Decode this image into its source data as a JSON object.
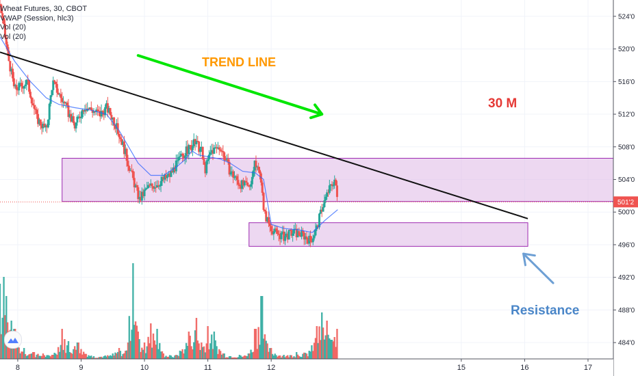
{
  "legend": {
    "symbol": "Wheat Futures, 30, CBOT",
    "vwap": "VWAP (Session, hlc3)",
    "vol1": "Vol (20)",
    "vol2": "Vol (20)"
  },
  "annotations": {
    "trend_line": "TREND LINE",
    "timeframe": "30 M",
    "resistance": "Resistance"
  },
  "colors": {
    "up": "#26a69a",
    "down": "#ef5350",
    "vwap": "#2962ff",
    "zone_fill": "#e1bee7",
    "zone_border": "#9c27b0",
    "trend_arrow": "#00e600",
    "trend_text": "#ff9800",
    "timeframe_text": "#e53935",
    "resistance_text": "#4a86c8",
    "price_line": "#ef5350"
  },
  "chart_data": {
    "type": "candlestick",
    "price_axis": {
      "ylim": [
        4820,
        5260
      ],
      "tick_labels": [
        "524'0",
        "520'0",
        "516'0",
        "512'0",
        "508'0",
        "504'0",
        "500'0",
        "496'0",
        "492'0",
        "488'0",
        "484'0"
      ],
      "tick_values": [
        5240,
        5200,
        5160,
        5120,
        5080,
        5040,
        5000,
        4960,
        4920,
        4880,
        4840
      ],
      "current_price_label": "501'2",
      "current_price": 5012.5
    },
    "time_axis": {
      "tick_labels": [
        "8",
        "9",
        "10",
        "11",
        "12",
        "15",
        "16",
        "17"
      ],
      "tick_values": [
        8,
        9,
        10,
        11,
        12,
        15,
        16,
        17
      ],
      "xlim": [
        7.72,
        17.4
      ]
    },
    "path": [
      [
        7.72,
        5255
      ],
      [
        7.85,
        5190
      ],
      [
        7.95,
        5150
      ],
      [
        8.15,
        5160
      ],
      [
        8.3,
        5115
      ],
      [
        8.45,
        5100
      ],
      [
        8.55,
        5160
      ],
      [
        8.75,
        5130
      ],
      [
        8.9,
        5105
      ],
      [
        9.05,
        5130
      ],
      [
        9.3,
        5120
      ],
      [
        9.4,
        5128
      ],
      [
        9.5,
        5115
      ],
      [
        9.65,
        5085
      ],
      [
        9.8,
        5045
      ],
      [
        9.92,
        5015
      ],
      [
        10.05,
        5030
      ],
      [
        10.2,
        5035
      ],
      [
        10.4,
        5045
      ],
      [
        10.6,
        5070
      ],
      [
        10.8,
        5085
      ],
      [
        10.9,
        5075
      ],
      [
        10.95,
        5050
      ],
      [
        11.05,
        5075
      ],
      [
        11.2,
        5080
      ],
      [
        11.35,
        5050
      ],
      [
        11.5,
        5035
      ],
      [
        11.65,
        5030
      ],
      [
        11.75,
        5060
      ],
      [
        11.85,
        5040
      ],
      [
        11.88,
        5000
      ],
      [
        11.97,
        4985
      ],
      [
        12.05,
        4975
      ],
      [
        12.2,
        4970
      ],
      [
        12.35,
        4975
      ],
      [
        12.5,
        4972
      ],
      [
        12.62,
        4965
      ],
      [
        12.72,
        4980
      ],
      [
        12.8,
        5005
      ],
      [
        12.9,
        5025
      ],
      [
        13.0,
        5040
      ],
      [
        13.05,
        5012
      ]
    ],
    "vwap": [
      [
        7.72,
        5215
      ],
      [
        7.95,
        5185
      ],
      [
        8.2,
        5160
      ],
      [
        8.45,
        5140
      ],
      [
        8.65,
        5132
      ],
      [
        8.9,
        5128
      ],
      [
        9.15,
        5125
      ],
      [
        9.4,
        5120
      ],
      [
        9.6,
        5100
      ],
      [
        9.75,
        5080
      ],
      [
        9.9,
        5060
      ],
      [
        10.1,
        5045
      ],
      [
        10.3,
        5045
      ],
      [
        10.5,
        5055
      ],
      [
        10.65,
        5065
      ],
      [
        10.75,
        5075
      ],
      [
        10.85,
        5070
      ],
      [
        11.0,
        5068
      ],
      [
        11.2,
        5065
      ],
      [
        11.35,
        5060
      ],
      [
        11.55,
        5050
      ],
      [
        11.75,
        5048
      ],
      [
        11.88,
        5040
      ],
      [
        12.0,
        4985
      ],
      [
        12.2,
        4980
      ],
      [
        12.45,
        4978
      ],
      [
        12.65,
        4975
      ],
      [
        12.85,
        4990
      ],
      [
        13.05,
        5003
      ]
    ],
    "volume": {
      "xlim": [
        7.72,
        17.4
      ],
      "ylim": [
        0,
        70
      ],
      "spikes": [
        [
          7.72,
          55
        ],
        [
          7.78,
          60
        ],
        [
          7.82,
          46
        ],
        [
          7.9,
          28
        ],
        [
          7.95,
          22
        ],
        [
          8.0,
          14
        ],
        [
          8.1,
          8
        ],
        [
          8.25,
          5
        ],
        [
          8.4,
          4
        ],
        [
          8.55,
          3
        ],
        [
          8.7,
          22
        ],
        [
          8.8,
          13
        ],
        [
          8.95,
          12
        ],
        [
          9.2,
          2
        ],
        [
          9.5,
          4
        ],
        [
          9.6,
          8
        ],
        [
          9.7,
          6
        ],
        [
          9.82,
          70
        ],
        [
          9.9,
          20
        ],
        [
          10.0,
          12
        ],
        [
          10.1,
          26
        ],
        [
          10.2,
          22
        ],
        [
          10.3,
          4
        ],
        [
          10.5,
          3
        ],
        [
          10.7,
          20
        ],
        [
          10.82,
          30
        ],
        [
          10.9,
          12
        ],
        [
          11.0,
          24
        ],
        [
          11.1,
          20
        ],
        [
          11.25,
          4
        ],
        [
          11.5,
          3
        ],
        [
          11.65,
          4
        ],
        [
          11.75,
          22
        ],
        [
          11.85,
          46
        ],
        [
          11.9,
          18
        ],
        [
          12.0,
          8
        ],
        [
          12.2,
          3
        ],
        [
          12.4,
          5
        ],
        [
          12.6,
          6
        ],
        [
          12.72,
          24
        ],
        [
          12.8,
          34
        ],
        [
          12.88,
          28
        ],
        [
          12.95,
          14
        ],
        [
          13.0,
          16
        ],
        [
          13.05,
          22
        ]
      ]
    },
    "trend_line": [
      [
        7.72,
        5196
      ],
      [
        16.05,
        4992
      ]
    ],
    "zones": [
      {
        "x": [
          8.7,
          17.4
        ],
        "y": [
          5013,
          5066
        ]
      },
      {
        "x": [
          11.65,
          16.05
        ],
        "y": [
          4958,
          4987
        ]
      }
    ],
    "trend_arrow": {
      "from": [
        9.9,
        5192
      ],
      "to": [
        12.8,
        5120
      ]
    },
    "resistance_arrow": {
      "from": [
        16.45,
        4913
      ],
      "to": [
        15.98,
        4949
      ]
    }
  }
}
